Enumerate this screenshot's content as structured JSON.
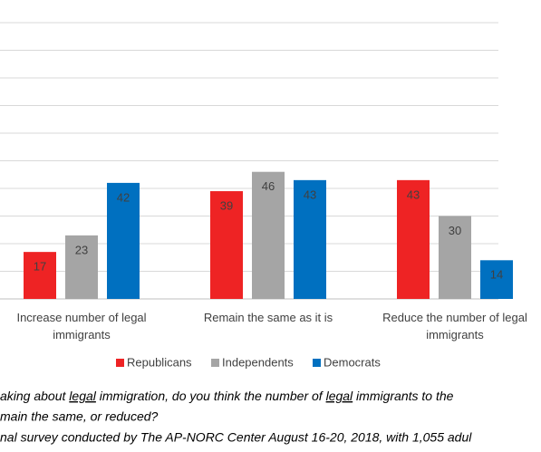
{
  "chart_data": {
    "type": "bar",
    "categories": [
      "Increase number of legal immigrants",
      "Remain the same as it is",
      "Reduce the number of legal immigrants"
    ],
    "series": [
      {
        "name": "Republicans",
        "color": "#ee2324",
        "values": [
          17,
          39,
          43
        ]
      },
      {
        "name": "Independents",
        "color": "#a5a5a5",
        "values": [
          23,
          46,
          30
        ]
      },
      {
        "name": "Democrats",
        "color": "#0070c0",
        "values": [
          42,
          43,
          14
        ]
      }
    ],
    "ylim": [
      0,
      100
    ],
    "yticks": [
      0,
      10,
      20,
      30,
      40,
      50,
      60,
      70,
      80,
      90,
      100
    ],
    "grid": true,
    "legend": "bottom"
  },
  "footnote": {
    "question": [
      "aking about ",
      "legal",
      " immigration, do you think the number of ",
      "legal",
      " immigrants to the"
    ],
    "question_line2": "main the same, or reduced?",
    "source": "nal survey conducted by The AP-NORC Center August 16-20, 2018, with 1,055 adul"
  }
}
